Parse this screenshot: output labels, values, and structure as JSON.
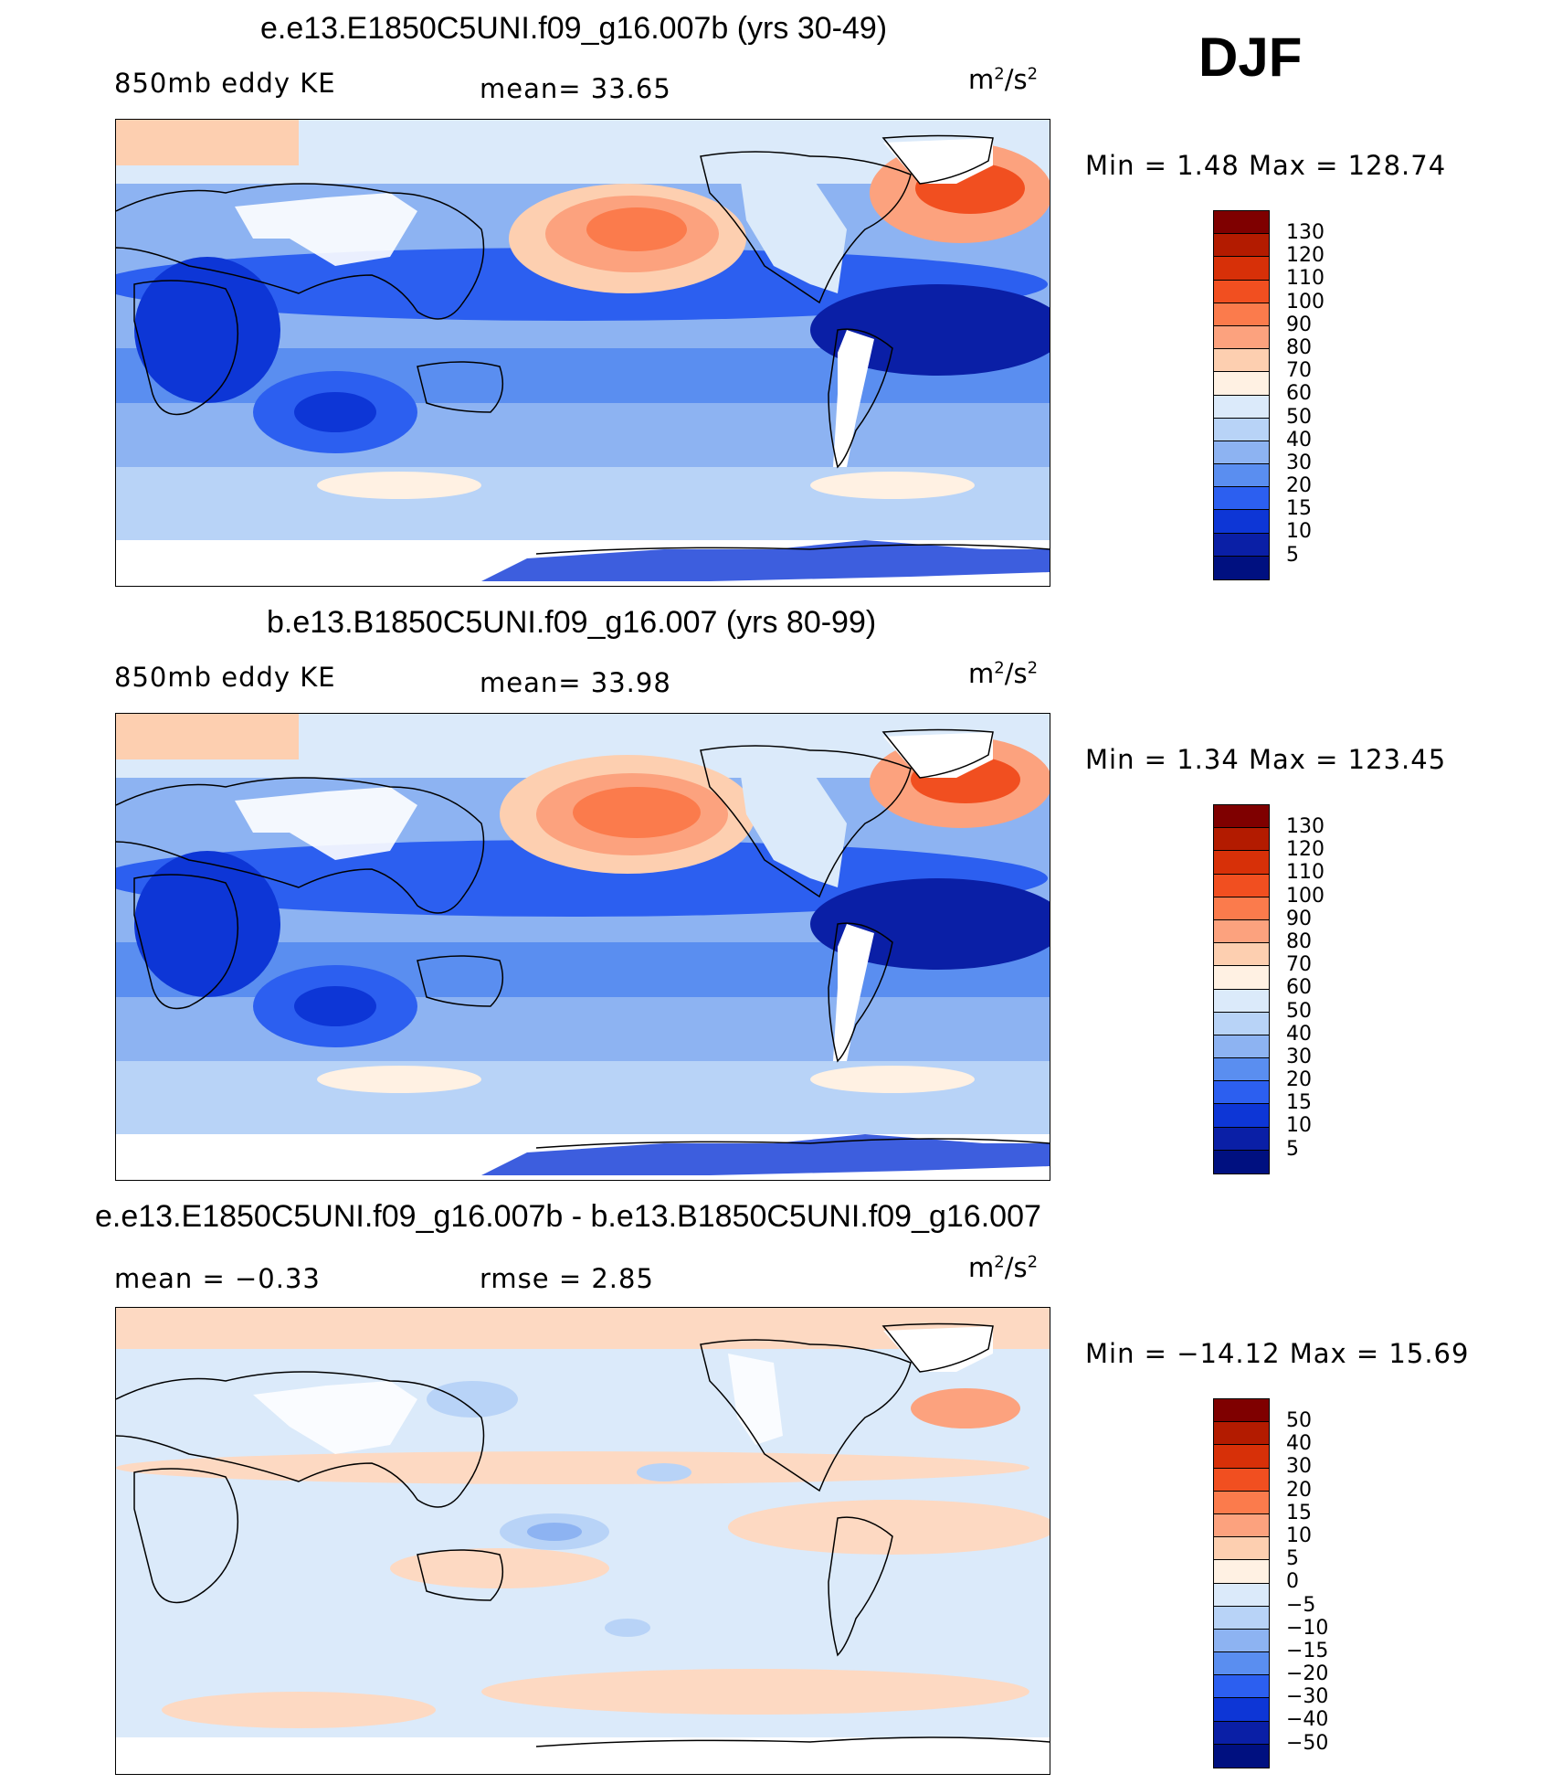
{
  "season": "DJF",
  "units_base": "m",
  "units_exp1": "2",
  "units_mid": "/s",
  "units_exp2": "2",
  "panels": [
    {
      "title": "e.e13.E1850C5UNI.f09_g16.007b (yrs 30-49)",
      "left_label": "850mb eddy KE",
      "center_label": "mean=   33.65",
      "minmax": "Min  =     1.48  Max  =  128.74",
      "colorbar_labels": [
        "130",
        "120",
        "110",
        "100",
        "90",
        "80",
        "70",
        "60",
        "50",
        "40",
        "30",
        "20",
        "15",
        "10",
        "5"
      ]
    },
    {
      "title": "b.e13.B1850C5UNI.f09_g16.007 (yrs 80-99)",
      "left_label": "850mb eddy KE",
      "center_label": "mean=   33.98",
      "minmax": "Min  =     1.34  Max  =  123.45",
      "colorbar_labels": [
        "130",
        "120",
        "110",
        "100",
        "90",
        "80",
        "70",
        "60",
        "50",
        "40",
        "30",
        "20",
        "15",
        "10",
        "5"
      ]
    },
    {
      "title": "e.e13.E1850C5UNI.f09_g16.007b - b.e13.B1850C5UNI.f09_g16.007",
      "left_label": "mean  =   −0.33",
      "center_label": "rmse  =     2.85",
      "minmax": "Min  =  −14.12  Max  =    15.69",
      "colorbar_labels": [
        "50",
        "40",
        "30",
        "20",
        "15",
        "10",
        "5",
        "0",
        "−5",
        "−10",
        "−15",
        "−20",
        "−30",
        "−40",
        "−50"
      ]
    }
  ],
  "colors": {
    "colorbar": [
      "#7f0000",
      "#b31b00",
      "#d73008",
      "#f14f20",
      "#fb7b4c",
      "#fca27e",
      "#fdcfb0",
      "#fff1e3",
      "#dbeafa",
      "#b8d3f7",
      "#8db3f2",
      "#5a8ef0",
      "#2c5ff0",
      "#0d36d6",
      "#0a1fa6",
      "#001080"
    ],
    "ocean_mid": "#b8d3f7",
    "ocean_deep": "#0d36d6",
    "ocean_deeper": "#0a1fa6",
    "warm_strong": "#fb7b4c",
    "warm_light": "#fdcfb0",
    "diff_bg": "#dbeafa",
    "diff_warm": "#fdd9c2"
  }
}
